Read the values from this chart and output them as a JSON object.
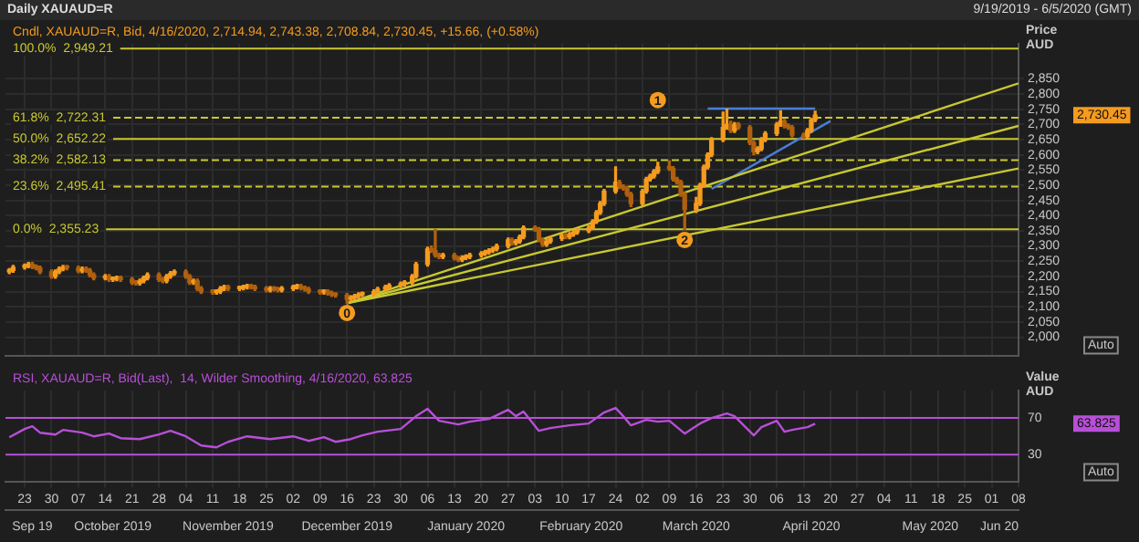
{
  "chart_data": [
    {
      "type": "candlestick",
      "title": "Daily XAUAUD=R",
      "subtitle": "Cndl, XAUAUD=R, Bid, 4/16/2020, 2,714.94, 2,743.38, 2,708.84, 2,730.45, +15.66, (+0.58%)",
      "ylabel": "Price AUD",
      "series": [
        {
          "type": "candlestick",
          "color": "#f59b1f",
          "colors": [
            "#f59b1f",
            "#f59b1f",
            "#f59b1f",
            "#f59b1f",
            "#b0600e",
            "#b0600e",
            "#b0600e",
            "#b0600e",
            "#f59b1f",
            "#f59b1f",
            "#f59b1f",
            "#b0600e",
            "#b0600e",
            "#f59b1f",
            "#b0600e",
            "#b0600e",
            "#b0600e",
            "#f59b1f",
            "#b0600e",
            "#f59b1f",
            "#f59b1f",
            "#b0600e",
            "#b0600e",
            "#b0600e",
            "#f59b1f",
            "#f59b1f",
            "#f59b1f",
            "#b0600e",
            "#b0600e",
            "#f59b1f",
            "#f59b1f",
            "#f59b1f",
            "#b0600e",
            "#b0600e",
            "#f59b1f",
            "#b0600e",
            "#b0600e",
            "#b0600e",
            "#f59b1f",
            "#f59b1f",
            "#f59b1f",
            "#b0600e",
            "#f59b1f",
            "#f59b1f",
            "#f59b1f",
            "#b0600e",
            "#b0600e",
            "#b0600e",
            "#f59b1f",
            "#b0600e",
            "#b0600e",
            "#f59b1f",
            "#f59b1f",
            "#f59b1f",
            "#b0600e",
            "#b0600e",
            "#b0600e",
            "#b0600e",
            "#f59b1f",
            "#b0600e",
            "#b0600e",
            "#b0600e",
            "#b0600e",
            "#f59b1f",
            "#f59b1f",
            "#f59b1f",
            "#f59b1f",
            "#f59b1f",
            "#f59b1f",
            "#f59b1f",
            "#f59b1f",
            "#f59b1f",
            "#f59b1f",
            "#f59b1f",
            "#f59b1f",
            "#f59b1f",
            "#b0600e",
            "#b0600e",
            "#b0600e",
            "#f59b1f",
            "#b0600e",
            "#b0600e",
            "#f59b1f",
            "#f59b1f",
            "#f59b1f",
            "#f59b1f",
            "#f59b1f",
            "#f59b1f",
            "#f59b1f",
            "#f59b1f",
            "#f59b1f",
            "#b0600e",
            "#f59b1f",
            "#f59b1f",
            "#f59b1f",
            "#b0600e",
            "#b0600e",
            "#b0600e",
            "#f59b1f",
            "#f59b1f",
            "#f59b1f",
            "#b0600e",
            "#f59b1f",
            "#f59b1f",
            "#f59b1f",
            "#f59b1f",
            "#f59b1f",
            "#f59b1f",
            "#f59b1f",
            "#f59b1f",
            "#f59b1f",
            "#b0600e",
            "#b0600e",
            "#b0600e",
            "#b0600e",
            "#f59b1f",
            "#f59b1f",
            "#f59b1f",
            "#f59b1f",
            "#f59b1f",
            "#b0600e",
            "#b0600e",
            "#b0600e",
            "#b0600e",
            "#b0600e",
            "#f59b1f",
            "#f59b1f",
            "#f59b1f",
            "#f59b1f",
            "#f59b1f",
            "#f59b1f",
            "#f59b1f",
            "#b0600e",
            "#f59b1f",
            "#b0600e",
            "#b0600e",
            "#b0600e",
            "#f59b1f",
            "#f59b1f",
            "#f59b1f",
            "#f59b1f",
            "#f59b1f",
            "#b0600e",
            "#b0600e",
            "#b0600e",
            "#b0600e",
            "#f59b1f",
            "#f59b1f",
            "#f59b1f"
          ],
          "x": [
            "2019-09-19",
            "2019-09-20",
            "2019-09-23",
            "2019-09-24",
            "2019-09-25",
            "2019-09-26",
            "2019-09-27",
            "2019-09-30",
            "2019-10-01",
            "2019-10-02",
            "2019-10-03",
            "2019-10-04",
            "2019-10-07",
            "2019-10-08",
            "2019-10-09",
            "2019-10-10",
            "2019-10-11",
            "2019-10-14",
            "2019-10-15",
            "2019-10-16",
            "2019-10-17",
            "2019-10-18",
            "2019-10-21",
            "2019-10-22",
            "2019-10-23",
            "2019-10-24",
            "2019-10-25",
            "2019-10-28",
            "2019-10-29",
            "2019-10-30",
            "2019-10-31",
            "2019-11-01",
            "2019-11-04",
            "2019-11-05",
            "2019-11-06",
            "2019-11-07",
            "2019-11-08",
            "2019-11-11",
            "2019-11-12",
            "2019-11-13",
            "2019-11-14",
            "2019-11-15",
            "2019-11-18",
            "2019-11-19",
            "2019-11-20",
            "2019-11-21",
            "2019-11-22",
            "2019-11-25",
            "2019-11-26",
            "2019-11-27",
            "2019-11-28",
            "2019-11-29",
            "2019-12-02",
            "2019-12-03",
            "2019-12-04",
            "2019-12-05",
            "2019-12-06",
            "2019-12-09",
            "2019-12-10",
            "2019-12-11",
            "2019-12-12",
            "2019-12-13",
            "2019-12-16",
            "2019-12-17",
            "2019-12-18",
            "2019-12-19",
            "2019-12-20",
            "2019-12-23",
            "2019-12-24",
            "2019-12-26",
            "2019-12-27",
            "2019-12-30",
            "2019-12-31",
            "2020-01-02",
            "2020-01-03",
            "2020-01-06",
            "2020-01-07",
            "2020-01-08",
            "2020-01-09",
            "2020-01-10",
            "2020-01-13",
            "2020-01-14",
            "2020-01-15",
            "2020-01-16",
            "2020-01-17",
            "2020-01-20",
            "2020-01-21",
            "2020-01-22",
            "2020-01-23",
            "2020-01-24",
            "2020-01-27",
            "2020-01-28",
            "2020-01-29",
            "2020-01-30",
            "2020-01-31",
            "2020-02-03",
            "2020-02-04",
            "2020-02-05",
            "2020-02-06",
            "2020-02-07",
            "2020-02-10",
            "2020-02-11",
            "2020-02-12",
            "2020-02-13",
            "2020-02-14",
            "2020-02-17",
            "2020-02-18",
            "2020-02-19",
            "2020-02-20",
            "2020-02-21",
            "2020-02-24",
            "2020-02-25",
            "2020-02-26",
            "2020-02-27",
            "2020-02-28",
            "2020-03-02",
            "2020-03-03",
            "2020-03-04",
            "2020-03-05",
            "2020-03-06",
            "2020-03-09",
            "2020-03-10",
            "2020-03-11",
            "2020-03-12",
            "2020-03-13",
            "2020-03-16",
            "2020-03-17",
            "2020-03-18",
            "2020-03-19",
            "2020-03-20",
            "2020-03-23",
            "2020-03-24",
            "2020-03-25",
            "2020-03-26",
            "2020-03-27",
            "2020-03-30",
            "2020-03-31",
            "2020-04-01",
            "2020-04-02",
            "2020-04-03",
            "2020-04-06",
            "2020-04-07",
            "2020-04-08",
            "2020-04-09",
            "2020-04-10",
            "2020-04-13",
            "2020-04-14",
            "2020-04-15",
            "2020-04-16"
          ],
          "ohlc": [
            [
              2215,
              2226,
              2209,
              2220
            ],
            [
              2220,
              2236,
              2214,
              2230
            ],
            [
              2230,
              2241,
              2224,
              2235
            ],
            [
              2235,
              2246,
              2229,
              2240
            ],
            [
              2240,
              2246,
              2226,
              2232
            ],
            [
              2232,
              2238,
              2222,
              2228
            ],
            [
              2228,
              2234,
              2209,
              2215
            ],
            [
              2215,
              2221,
              2194,
              2200
            ],
            [
              2200,
              2221,
              2194,
              2215
            ],
            [
              2215,
              2231,
              2209,
              2225
            ],
            [
              2225,
              2236,
              2219,
              2230
            ],
            [
              2230,
              2236,
              2222,
              2228
            ],
            [
              2228,
              2234,
              2212,
              2218
            ],
            [
              2218,
              2231,
              2212,
              2225
            ],
            [
              2225,
              2231,
              2214,
              2220
            ],
            [
              2220,
              2226,
              2199,
              2205
            ],
            [
              2205,
              2211,
              2189,
              2195
            ],
            [
              2195,
              2206,
              2189,
              2200
            ],
            [
              2200,
              2206,
              2184,
              2190
            ],
            [
              2190,
              2198,
              2184,
              2192
            ],
            [
              2192,
              2201,
              2186,
              2195
            ],
            [
              2195,
              2201,
              2184,
              2190
            ],
            [
              2190,
              2196,
              2174,
              2180
            ],
            [
              2180,
              2186,
              2172,
              2178
            ],
            [
              2178,
              2191,
              2172,
              2185
            ],
            [
              2185,
              2201,
              2179,
              2195
            ],
            [
              2195,
              2211,
              2189,
              2205
            ],
            [
              2205,
              2211,
              2184,
              2190
            ],
            [
              2190,
              2196,
              2179,
              2185
            ],
            [
              2185,
              2206,
              2179,
              2200
            ],
            [
              2200,
              2216,
              2194,
              2210
            ],
            [
              2210,
              2221,
              2204,
              2215
            ],
            [
              2215,
              2221,
              2194,
              2200
            ],
            [
              2200,
              2206,
              2174,
              2180
            ],
            [
              2180,
              2191,
              2174,
              2185
            ],
            [
              2185,
              2191,
              2154,
              2160
            ],
            [
              2160,
              2166,
              2144,
              2150
            ],
            [
              2150,
              2156,
              2142,
              2148
            ],
            [
              2148,
              2156,
              2142,
              2150
            ],
            [
              2150,
              2166,
              2144,
              2160
            ],
            [
              2160,
              2171,
              2154,
              2165
            ],
            [
              2165,
              2171,
              2154,
              2160
            ],
            [
              2160,
              2168,
              2154,
              2162
            ],
            [
              2162,
              2171,
              2156,
              2165
            ],
            [
              2165,
              2174,
              2159,
              2168
            ],
            [
              2168,
              2174,
              2159,
              2165
            ],
            [
              2165,
              2171,
              2154,
              2160
            ],
            [
              2160,
              2166,
              2149,
              2155
            ],
            [
              2155,
              2166,
              2149,
              2160
            ],
            [
              2160,
              2166,
              2152,
              2158
            ],
            [
              2158,
              2164,
              2149,
              2155
            ],
            [
              2155,
              2166,
              2149,
              2160
            ],
            [
              2160,
              2171,
              2154,
              2165
            ],
            [
              2165,
              2174,
              2159,
              2168
            ],
            [
              2168,
              2174,
              2156,
              2162
            ],
            [
              2162,
              2168,
              2152,
              2158
            ],
            [
              2158,
              2164,
              2144,
              2150
            ],
            [
              2150,
              2156,
              2142,
              2148
            ],
            [
              2148,
              2156,
              2142,
              2150
            ],
            [
              2150,
              2156,
              2139,
              2145
            ],
            [
              2145,
              2151,
              2134,
              2140
            ],
            [
              2140,
              2146,
              2132,
              2138
            ],
            [
              2138,
              2144,
              2112,
              2125
            ],
            [
              2125,
              2136,
              2119,
              2130
            ],
            [
              2130,
              2141,
              2124,
              2135
            ],
            [
              2135,
              2146,
              2129,
              2140
            ],
            [
              2140,
              2148,
              2134,
              2142
            ],
            [
              2142,
              2156,
              2136,
              2150
            ],
            [
              2150,
              2164,
              2144,
              2158
            ],
            [
              2158,
              2171,
              2152,
              2165
            ],
            [
              2165,
              2176,
              2159,
              2170
            ],
            [
              2170,
              2181,
              2164,
              2175
            ],
            [
              2175,
              2186,
              2169,
              2180
            ],
            [
              2180,
              2206,
              2174,
              2200
            ],
            [
              2200,
              2246,
              2194,
              2240
            ],
            [
              2240,
              2296,
              2234,
              2290
            ],
            [
              2290,
              2300,
              2279,
              2285
            ],
            [
              2285,
              2355,
              2264,
              2270
            ],
            [
              2270,
              2276,
              2259,
              2265
            ],
            [
              2265,
              2276,
              2259,
              2270
            ],
            [
              2270,
              2276,
              2254,
              2260
            ],
            [
              2260,
              2266,
              2249,
              2255
            ],
            [
              2255,
              2268,
              2249,
              2262
            ],
            [
              2262,
              2271,
              2256,
              2265
            ],
            [
              2265,
              2276,
              2259,
              2270
            ],
            [
              2270,
              2281,
              2264,
              2275
            ],
            [
              2275,
              2286,
              2269,
              2280
            ],
            [
              2280,
              2291,
              2274,
              2285
            ],
            [
              2285,
              2296,
              2279,
              2290
            ],
            [
              2290,
              2306,
              2284,
              2300
            ],
            [
              2300,
              2326,
              2294,
              2320
            ],
            [
              2320,
              2326,
              2304,
              2310
            ],
            [
              2310,
              2321,
              2304,
              2315
            ],
            [
              2315,
              2336,
              2309,
              2330
            ],
            [
              2330,
              2366,
              2324,
              2360
            ],
            [
              2360,
              2366,
              2349,
              2355
            ],
            [
              2355,
              2361,
              2314,
              2320
            ],
            [
              2320,
              2326,
              2299,
              2305
            ],
            [
              2305,
              2321,
              2299,
              2315
            ],
            [
              2315,
              2331,
              2309,
              2325
            ],
            [
              2325,
              2341,
              2319,
              2335
            ],
            [
              2335,
              2341,
              2324,
              2330
            ],
            [
              2330,
              2344,
              2324,
              2338
            ],
            [
              2338,
              2351,
              2332,
              2345
            ],
            [
              2345,
              2356,
              2339,
              2350
            ],
            [
              2350,
              2366,
              2344,
              2360
            ],
            [
              2360,
              2386,
              2354,
              2380
            ],
            [
              2380,
              2416,
              2374,
              2410
            ],
            [
              2410,
              2446,
              2404,
              2440
            ],
            [
              2440,
              2486,
              2434,
              2480
            ],
            [
              2480,
              2560,
              2474,
              2510
            ],
            [
              2510,
              2516,
              2489,
              2495
            ],
            [
              2495,
              2501,
              2484,
              2490
            ],
            [
              2490,
              2496,
              2464,
              2470
            ],
            [
              2470,
              2476,
              2430,
              2440
            ],
            [
              2440,
              2486,
              2434,
              2480
            ],
            [
              2480,
              2526,
              2474,
              2520
            ],
            [
              2520,
              2536,
              2514,
              2530
            ],
            [
              2530,
              2551,
              2524,
              2545
            ],
            [
              2545,
              2575,
              2539,
              2560
            ],
            [
              2560,
              2580,
              2549,
              2555
            ],
            [
              2555,
              2561,
              2514,
              2520
            ],
            [
              2520,
              2526,
              2504,
              2510
            ],
            [
              2510,
              2516,
              2464,
              2470
            ],
            [
              2470,
              2476,
              2355.23,
              2420
            ],
            [
              2420,
              2460,
              2410,
              2440
            ],
            [
              2440,
              2506,
              2434,
              2500
            ],
            [
              2500,
              2566,
              2494,
              2560
            ],
            [
              2560,
              2606,
              2554,
              2600
            ],
            [
              2600,
              2656,
              2594,
              2650
            ],
            [
              2650,
              2740,
              2644,
              2690
            ],
            [
              2690,
              2750,
              2684,
              2700
            ],
            [
              2700,
              2710,
              2674,
              2680
            ],
            [
              2680,
              2706,
              2674,
              2700
            ],
            [
              2700,
              2706,
              2684,
              2690
            ],
            [
              2690,
              2696,
              2634,
              2640
            ],
            [
              2640,
              2646,
              2600,
              2610
            ],
            [
              2610,
              2626,
              2604,
              2620
            ],
            [
              2620,
              2656,
              2614,
              2650
            ],
            [
              2650,
              2676,
              2644,
              2670
            ],
            [
              2670,
              2706,
              2664,
              2700
            ],
            [
              2700,
              2745,
              2694,
              2710
            ],
            [
              2710,
              2716,
              2689,
              2695
            ],
            [
              2695,
              2701,
              2684,
              2690
            ],
            [
              2690,
              2696,
              2659,
              2665
            ],
            [
              2665,
              2671,
              2654,
              2660
            ],
            [
              2660,
              2686,
              2654,
              2680
            ],
            [
              2680,
              2720,
              2674,
              2714.79
            ],
            [
              2714.94,
              2743.38,
              2708.84,
              2730.45
            ]
          ]
        },
        {
          "type": "line",
          "color": "#c8c832",
          "x": [
            "2019-12-16",
            "2020-06-08"
          ],
          "values": [
            2112,
            2835
          ]
        },
        {
          "type": "line",
          "color": "#c8c832",
          "x": [
            "2019-12-16",
            "2020-06-08"
          ],
          "values": [
            2112,
            2695
          ]
        },
        {
          "type": "line",
          "color": "#c8c832",
          "x": [
            "2019-12-16",
            "2020-06-08"
          ],
          "values": [
            2112,
            2555
          ]
        },
        {
          "type": "line",
          "color": "#4a7fd6",
          "x": [
            "2020-03-19",
            "2020-04-16"
          ],
          "values": [
            2752,
            2752
          ]
        },
        {
          "type": "line",
          "color": "#4a7fd6",
          "x": [
            "2020-03-20",
            "2020-04-20"
          ],
          "values": [
            2488,
            2711
          ]
        }
      ],
      "ref_lines": [
        {
          "axis": "y",
          "value": 2949.21,
          "label": "100.0%  2,949.21",
          "color": "#c8c832",
          "line_style": "solid"
        },
        {
          "axis": "y",
          "value": 2722.31,
          "label": "61.8%  2,722.31",
          "color": "#c8c832",
          "line_style": "dashed"
        },
        {
          "axis": "y",
          "value": 2652.22,
          "label": "50.0%  2,652.22",
          "color": "#c8c832",
          "line_style": "solid"
        },
        {
          "axis": "y",
          "value": 2582.13,
          "label": "38.2%  2,582.13",
          "color": "#c8c832",
          "line_style": "dashed"
        },
        {
          "axis": "y",
          "value": 2495.41,
          "label": "23.6%  2,495.41",
          "color": "#c8c832",
          "line_style": "dashed"
        },
        {
          "axis": "y",
          "value": 2355.23,
          "label": "0.0%  2,355.23",
          "color": "#c8c832",
          "line_style": "solid"
        }
      ],
      "annotations": [
        "9/19/2019 - 6/5/2020 (GMT)",
        "Auto",
        {
          "text": "0",
          "x": "2019-12-16",
          "y": 2080
        },
        {
          "text": "1",
          "x": "2020-03-06",
          "y": 2780
        },
        {
          "text": "2",
          "x": "2020-03-13",
          "y": 2320
        },
        "2,730.45"
      ],
      "xlim": [
        "2019-09-18",
        "2020-06-08"
      ],
      "xticks": [
        {
          "value": "2019-09-23",
          "label": null
        },
        {
          "value": "2019-09-30",
          "label": null
        },
        {
          "value": "2019-10-07",
          "label": null
        },
        {
          "value": "2019-10-14",
          "label": null
        },
        {
          "value": "2019-10-21",
          "label": null
        },
        {
          "value": "2019-10-28",
          "label": null
        },
        {
          "value": "2019-11-04",
          "label": null
        },
        {
          "value": "2019-11-11",
          "label": null
        },
        {
          "value": "2019-11-18",
          "label": null
        },
        {
          "value": "2019-11-25",
          "label": null
        },
        {
          "value": "2019-12-02",
          "label": null
        },
        {
          "value": "2019-12-09",
          "label": null
        },
        {
          "value": "2019-12-16",
          "label": null
        },
        {
          "value": "2019-12-23",
          "label": null
        },
        {
          "value": "2019-12-30",
          "label": null
        },
        {
          "value": "2020-01-06",
          "label": null
        },
        {
          "value": "2020-01-13",
          "label": null
        },
        {
          "value": "2020-01-20",
          "label": null
        },
        {
          "value": "2020-01-27",
          "label": null
        },
        {
          "value": "2020-02-03",
          "label": null
        },
        {
          "value": "2020-02-10",
          "label": null
        },
        {
          "value": "2020-02-17",
          "label": null
        },
        {
          "value": "2020-02-24",
          "label": null
        },
        {
          "value": "2020-03-02",
          "label": null
        },
        {
          "value": "2020-03-09",
          "label": null
        },
        {
          "value": "2020-03-16",
          "label": null
        },
        {
          "value": "2020-03-23",
          "label": null
        },
        {
          "value": "2020-03-30",
          "label": null
        },
        {
          "value": "2020-04-06",
          "label": null
        },
        {
          "value": "2020-04-13",
          "label": null
        },
        {
          "value": "2020-04-20",
          "label": null
        },
        {
          "value": "2020-04-27",
          "label": null
        },
        {
          "value": "2020-05-04",
          "label": null
        },
        {
          "value": "2020-05-11",
          "label": null
        },
        {
          "value": "2020-05-18",
          "label": null
        },
        {
          "value": "2020-05-25",
          "label": null
        },
        {
          "value": "2020-06-01",
          "label": null
        },
        {
          "value": "2020-06-08",
          "label": null
        }
      ],
      "ylim": [
        1940,
        2965
      ],
      "yticks": [
        {
          "value": 2000,
          "label": "2,000"
        },
        {
          "value": 2050,
          "label": "2,050"
        },
        {
          "value": 2100,
          "label": "2,100"
        },
        {
          "value": 2150,
          "label": "2,150"
        },
        {
          "value": 2200,
          "label": "2,200"
        },
        {
          "value": 2250,
          "label": "2,250"
        },
        {
          "value": 2300,
          "label": "2,300"
        },
        {
          "value": 2350,
          "label": "2,350"
        },
        {
          "value": 2400,
          "label": "2,400"
        },
        {
          "value": 2450,
          "label": "2,450"
        },
        {
          "value": 2500,
          "label": "2,500"
        },
        {
          "value": 2550,
          "label": "2,550"
        },
        {
          "value": 2600,
          "label": "2,600"
        },
        {
          "value": 2650,
          "label": "2,650"
        },
        {
          "value": 2700,
          "label": "2,700"
        },
        {
          "value": 2750,
          "label": "2,750"
        },
        {
          "value": 2800,
          "label": "2,800"
        },
        {
          "value": 2850,
          "label": "2,850"
        }
      ],
      "grid": true,
      "tick_labels": "y"
    },
    {
      "type": "line",
      "subtitle": "RSI, XAUAUD=R, Bid(Last),  14, Wilder Smoothing, 4/16/2020, 63.825",
      "ylabel": "Value AUD",
      "series": [
        {
          "color": "#b84fd8",
          "x": [
            "2019-09-19",
            "2019-09-23",
            "2019-09-25",
            "2019-09-27",
            "2019-10-01",
            "2019-10-03",
            "2019-10-08",
            "2019-10-11",
            "2019-10-15",
            "2019-10-18",
            "2019-10-23",
            "2019-10-28",
            "2019-10-31",
            "2019-11-04",
            "2019-11-08",
            "2019-11-12",
            "2019-11-15",
            "2019-11-20",
            "2019-11-26",
            "2019-12-02",
            "2019-12-06",
            "2019-12-10",
            "2019-12-13",
            "2019-12-17",
            "2019-12-20",
            "2019-12-24",
            "2019-12-30",
            "2020-01-03",
            "2020-01-06",
            "2020-01-09",
            "2020-01-14",
            "2020-01-17",
            "2020-01-22",
            "2020-01-27",
            "2020-01-29",
            "2020-01-31",
            "2020-02-04",
            "2020-02-07",
            "2020-02-12",
            "2020-02-17",
            "2020-02-21",
            "2020-02-24",
            "2020-02-26",
            "2020-02-28",
            "2020-03-03",
            "2020-03-06",
            "2020-03-09",
            "2020-03-11",
            "2020-03-13",
            "2020-03-17",
            "2020-03-20",
            "2020-03-24",
            "2020-03-26",
            "2020-03-31",
            "2020-04-02",
            "2020-04-06",
            "2020-04-08",
            "2020-04-10",
            "2020-04-14",
            "2020-04-16"
          ],
          "values": [
            49,
            58,
            61,
            54,
            52,
            57,
            54,
            50,
            53,
            48,
            47,
            52,
            56,
            50,
            40,
            38,
            44,
            50,
            47,
            50,
            45,
            49,
            44,
            47,
            51,
            55,
            58,
            72,
            80,
            67,
            63,
            66,
            69,
            79,
            72,
            77,
            56,
            59,
            62,
            64,
            76,
            81,
            72,
            62,
            68,
            66,
            67,
            60,
            53,
            64,
            70,
            75,
            72,
            51,
            60,
            67,
            55,
            57,
            60,
            63.825
          ]
        }
      ],
      "ref_lines": [
        {
          "axis": "y",
          "value": 70,
          "color": "#b84fd8",
          "line_style": "solid"
        },
        {
          "axis": "y",
          "value": 30,
          "color": "#b84fd8",
          "line_style": "solid"
        }
      ],
      "annotations": [
        "Auto",
        "63.825"
      ],
      "xlim": [
        "2019-09-18",
        "2020-06-08"
      ],
      "xticks": [
        {
          "value": "2019-09-23",
          "label": "23"
        },
        {
          "value": "2019-09-30",
          "label": "30"
        },
        {
          "value": "2019-10-07",
          "label": "07"
        },
        {
          "value": "2019-10-14",
          "label": "14"
        },
        {
          "value": "2019-10-21",
          "label": "21"
        },
        {
          "value": "2019-10-28",
          "label": "28"
        },
        {
          "value": "2019-11-04",
          "label": "04"
        },
        {
          "value": "2019-11-11",
          "label": "11"
        },
        {
          "value": "2019-11-18",
          "label": "18"
        },
        {
          "value": "2019-11-25",
          "label": "25"
        },
        {
          "value": "2019-12-02",
          "label": "02"
        },
        {
          "value": "2019-12-09",
          "label": "09"
        },
        {
          "value": "2019-12-16",
          "label": "16"
        },
        {
          "value": "2019-12-23",
          "label": "23"
        },
        {
          "value": "2019-12-30",
          "label": "30"
        },
        {
          "value": "2020-01-06",
          "label": "06"
        },
        {
          "value": "2020-01-13",
          "label": "13"
        },
        {
          "value": "2020-01-20",
          "label": "20"
        },
        {
          "value": "2020-01-27",
          "label": "27"
        },
        {
          "value": "2020-02-03",
          "label": "03"
        },
        {
          "value": "2020-02-10",
          "label": "10"
        },
        {
          "value": "2020-02-17",
          "label": "17"
        },
        {
          "value": "2020-02-24",
          "label": "24"
        },
        {
          "value": "2020-03-02",
          "label": "02"
        },
        {
          "value": "2020-03-09",
          "label": "09"
        },
        {
          "value": "2020-03-16",
          "label": "16"
        },
        {
          "value": "2020-03-23",
          "label": "23"
        },
        {
          "value": "2020-03-30",
          "label": "30"
        },
        {
          "value": "2020-04-06",
          "label": "06"
        },
        {
          "value": "2020-04-13",
          "label": "13"
        },
        {
          "value": "2020-04-20",
          "label": "20"
        },
        {
          "value": "2020-04-27",
          "label": "27"
        },
        {
          "value": "2020-05-04",
          "label": "04"
        },
        {
          "value": "2020-05-11",
          "label": "11"
        },
        {
          "value": "2020-05-18",
          "label": "18"
        },
        {
          "value": "2020-05-25",
          "label": "25"
        },
        {
          "value": "2020-06-01",
          "label": "01"
        },
        {
          "value": "2020-06-08",
          "label": "08"
        }
      ],
      "x2lim": [
        "2019-09-18",
        "2020-06-08"
      ],
      "x2ticks": [
        {
          "value": "2019-09-25",
          "label": "Sep 19"
        },
        {
          "value": "2019-10-16",
          "label": "October 2019"
        },
        {
          "value": "2019-11-15",
          "label": "November 2019"
        },
        {
          "value": "2019-12-16",
          "label": "December 2019"
        },
        {
          "value": "2020-01-16",
          "label": "January 2020"
        },
        {
          "value": "2020-02-15",
          "label": "February 2020"
        },
        {
          "value": "2020-03-16",
          "label": "March 2020"
        },
        {
          "value": "2020-04-15",
          "label": "April 2020"
        },
        {
          "value": "2020-05-16",
          "label": "May 2020"
        },
        {
          "value": "2020-06-03",
          "label": "Jun 20"
        }
      ],
      "ylim": [
        0,
        100
      ],
      "yticks": [
        30,
        70
      ],
      "grid": "x"
    }
  ]
}
